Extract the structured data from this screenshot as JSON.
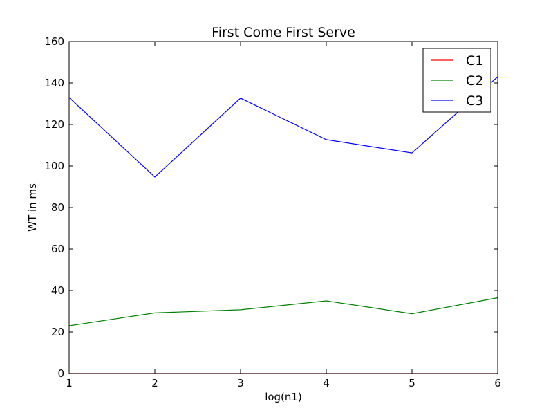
{
  "chart_data": {
    "type": "line",
    "title": "First Come First Serve",
    "xlabel": "log(n1)",
    "ylabel": "WT in ms",
    "x": [
      1,
      2,
      3,
      4,
      5,
      6
    ],
    "xlim": [
      1,
      6
    ],
    "ylim": [
      0,
      160
    ],
    "xticks": [
      "1",
      "2",
      "3",
      "4",
      "5",
      "6"
    ],
    "yticks": [
      "0",
      "20",
      "40",
      "60",
      "80",
      "100",
      "120",
      "140",
      "160"
    ],
    "grid": false,
    "legend_position": "top-right",
    "series": [
      {
        "name": "C1",
        "color": "#ff0000",
        "values": [
          0,
          0,
          0,
          0,
          0,
          0
        ]
      },
      {
        "name": "C2",
        "color": "#008000",
        "values": [
          23,
          29.2,
          30.7,
          35,
          28.8,
          36.5
        ]
      },
      {
        "name": "C3",
        "color": "#0000ff",
        "values": [
          133,
          94.7,
          132.7,
          112.7,
          106.3,
          143
        ]
      }
    ]
  }
}
